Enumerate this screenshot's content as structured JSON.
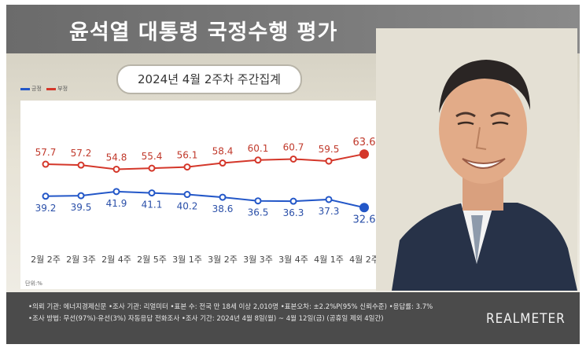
{
  "header": {
    "title": "윤석열 대통령 국정수행 평가"
  },
  "subtitle": "2024년 4월 2주차 주간집계",
  "unit_label": "단위:%",
  "colors": {
    "approve": "#2357c8",
    "disapprove": "#d4372a",
    "header_bg": "#6b6b6b",
    "footer_bg": "#4b4b4b"
  },
  "chart_data": {
    "type": "line",
    "categories": [
      "2월 2주",
      "2월 3주",
      "2월 4주",
      "2월 5주",
      "3월 1주",
      "3월 2주",
      "3월 3주",
      "3월 4주",
      "4월 1주",
      "4월 2주"
    ],
    "series": [
      {
        "name": "부정",
        "color": "#d4372a",
        "values": [
          57.7,
          57.2,
          54.8,
          55.4,
          56.1,
          58.4,
          60.1,
          60.7,
          59.5,
          63.6
        ]
      },
      {
        "name": "긍정",
        "color": "#2357c8",
        "values": [
          39.2,
          39.5,
          41.9,
          41.1,
          40.2,
          38.6,
          36.5,
          36.3,
          37.3,
          32.6
        ]
      }
    ],
    "legend": {
      "position": "top-left",
      "entries": [
        "긍정",
        "부정"
      ]
    },
    "grid": false
  },
  "footer": {
    "lines": [
      "•의뢰 기관: 에너지경제신문 •조사 기관: 리얼미터 •표본 수: 전국 만 18세 이상 2,010명 •표본오차: ±2.2%P(95% 신뢰수준) •응답률: 3.7%",
      "•조사 방법: 무선(97%)·유선(3%) 자동응답 전화조사 •조사 기간: 2024년 4월 8일(월) ~ 4월 12일(금) (공휴일 제외 4일간)"
    ],
    "brand": "REALMETER"
  }
}
